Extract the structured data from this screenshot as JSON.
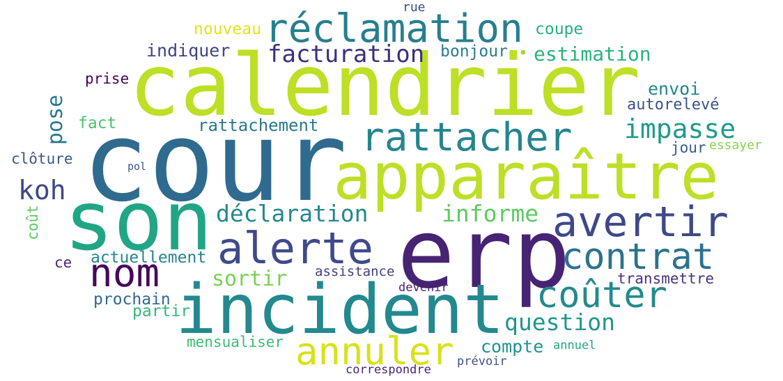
{
  "words": {
    "calendrier": {
      "text": "calendrier",
      "color": "#bddf26"
    },
    "cour": {
      "text": "cour",
      "color": "#2f6b8e"
    },
    "apparaitre": {
      "text": "apparaître",
      "color": "#bddf26"
    },
    "son": {
      "text": "son",
      "color": "#21a685"
    },
    "erp": {
      "text": "erp",
      "color": "#472374"
    },
    "incident": {
      "text": "incident",
      "color": "#23898e"
    },
    "reclamation": {
      "text": "réclamation",
      "color": "#277f8e"
    },
    "rattacher": {
      "text": "rattacher",
      "color": "#25858e"
    },
    "avertir": {
      "text": "avertir",
      "color": "#3e4989"
    },
    "alerte": {
      "text": "alerte",
      "color": "#3e4a89"
    },
    "nom": {
      "text": "nom",
      "color": "#46085c"
    },
    "contrat": {
      "text": "contrat",
      "color": "#2c728e"
    },
    "couter": {
      "text": "coûter",
      "color": "#238a8d"
    },
    "annuler": {
      "text": "annuler",
      "color": "#d8e219"
    },
    "facturation": {
      "text": "facturation",
      "color": "#3b2f80"
    },
    "impasse": {
      "text": "impasse",
      "color": "#1f9a8a"
    },
    "declaration": {
      "text": "déclaration",
      "color": "#23888e"
    },
    "informe": {
      "text": "informe",
      "color": "#5ec962"
    },
    "question": {
      "text": "question",
      "color": "#1f968b"
    },
    "koh": {
      "text": "koh",
      "color": "#3f4788"
    },
    "sortir": {
      "text": "sortir",
      "color": "#7ad151"
    },
    "estimation": {
      "text": "estimation",
      "color": "#2db27d"
    },
    "indiquer": {
      "text": "indiquer",
      "color": "#414487"
    },
    "nouveau": {
      "text": "nouveau",
      "color": "#e2e418"
    },
    "coupe": {
      "text": "coupe",
      "color": "#29af7f"
    },
    "bonjour": {
      "text": "bonjour",
      "color": "#287c8e"
    },
    "dot": {
      "text": "•",
      "color": "#a0da39"
    },
    "envoi": {
      "text": "envoi",
      "color": "#24868e"
    },
    "autoreleve": {
      "text": "autorelevé",
      "color": "#3b528b"
    },
    "rattachement": {
      "text": "rattachement",
      "color": "#2a788e"
    },
    "fact": {
      "text": "fact",
      "color": "#4ac16d"
    },
    "pose": {
      "text": "pose",
      "color": "#2a788e"
    },
    "jour": {
      "text": "jour",
      "color": "#365c8d"
    },
    "essayer": {
      "text": "essayer",
      "color": "#84d44b"
    },
    "cloture": {
      "text": "clôture",
      "color": "#39568c"
    },
    "pol": {
      "text": "pol",
      "color": "#3b528b"
    },
    "prise": {
      "text": "prise",
      "color": "#440154"
    },
    "rue": {
      "text": "rue",
      "color": "#3e4989"
    },
    "cout": {
      "text": "coût",
      "color": "#5ec962"
    },
    "ce": {
      "text": "ce",
      "color": "#482878"
    },
    "actuellement": {
      "text": "actuellement",
      "color": "#25848e"
    },
    "prochain": {
      "text": "prochain",
      "color": "#31688e"
    },
    "partir": {
      "text": "partir",
      "color": "#35b779"
    },
    "assistance": {
      "text": "assistance",
      "color": "#433e85"
    },
    "devenir": {
      "text": "devenir",
      "color": "#481f70"
    },
    "transmettre": {
      "text": "transmettre",
      "color": "#46337f"
    },
    "compte": {
      "text": "compte",
      "color": "#20928c"
    },
    "mensualiser": {
      "text": "mensualiser",
      "color": "#3bbb75"
    },
    "annuel": {
      "text": "annuel",
      "color": "#22a785"
    },
    "prevoir": {
      "text": "prévoir",
      "color": "#3b528b"
    },
    "correspondre": {
      "text": "correspondre",
      "color": "#482475"
    }
  }
}
